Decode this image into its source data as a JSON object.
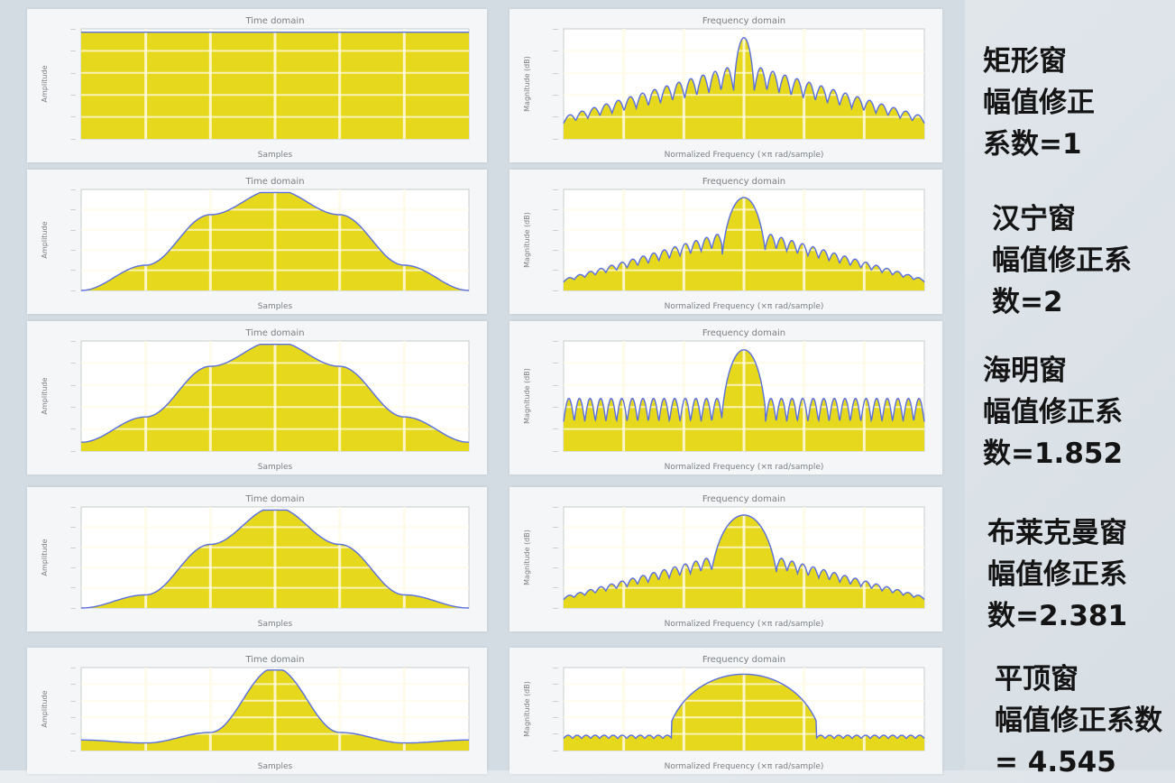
{
  "colors": {
    "fill": "#e6d81c",
    "curve": "#5a6fe0",
    "grid": "#fffbe6",
    "panel": "#f4f6f7"
  },
  "chart_data": [
    {
      "type": "area",
      "row": 0,
      "domain": "time",
      "window": "rectangular",
      "title": "Time domain",
      "xlabel": "Samples",
      "ylabel": "Amplitude",
      "ylim": [
        0,
        1
      ],
      "x": [
        0,
        250,
        500,
        750,
        1000,
        1250,
        1500
      ],
      "y": [
        1,
        1,
        1,
        1,
        1,
        1,
        1
      ]
    },
    {
      "type": "area",
      "row": 0,
      "domain": "frequency",
      "window": "rectangular",
      "title": "Frequency domain",
      "xlabel": "Normalized Frequency (×π rad/sample)",
      "ylabel": "Magnitude (dB)",
      "mainlobe_width": 0.03,
      "mainlobe_height": 1.0,
      "sidelobe_start": 0.72,
      "sidelobe_end": 0.22,
      "sidelobe_count": 14,
      "ripple": 0.15
    },
    {
      "type": "area",
      "row": 1,
      "domain": "time",
      "window": "hanning",
      "title": "Time domain",
      "xlabel": "Samples",
      "ylabel": "Amplitude",
      "ylim": [
        0,
        1
      ],
      "x": [
        0,
        250,
        500,
        750,
        1000,
        1250,
        1500
      ],
      "y": [
        0.0,
        0.25,
        0.75,
        1.0,
        0.75,
        0.25,
        0.0
      ]
    },
    {
      "type": "area",
      "row": 1,
      "domain": "frequency",
      "window": "hanning",
      "title": "Frequency domain",
      "xlabel": "Normalized Frequency (×π rad/sample)",
      "ylabel": "Magnitude (dB)",
      "mainlobe_width": 0.06,
      "mainlobe_height": 1.0,
      "sidelobe_start": 0.62,
      "sidelobe_end": 0.12,
      "sidelobe_count": 15,
      "ripple": 0.12
    },
    {
      "type": "area",
      "row": 2,
      "domain": "time",
      "window": "hamming",
      "title": "Time domain",
      "xlabel": "Samples",
      "ylabel": "Amplitude",
      "ylim": [
        0,
        1
      ],
      "x": [
        0,
        250,
        500,
        750,
        1000,
        1250,
        1500
      ],
      "y": [
        0.08,
        0.31,
        0.77,
        1.0,
        0.77,
        0.31,
        0.08
      ]
    },
    {
      "type": "area",
      "row": 2,
      "domain": "frequency",
      "window": "hamming",
      "title": "Frequency domain",
      "xlabel": "Normalized Frequency (×π rad/sample)",
      "ylabel": "Magnitude (dB)",
      "mainlobe_width": 0.06,
      "mainlobe_height": 1.0,
      "sidelobe_start": 0.52,
      "sidelobe_end": 0.52,
      "sidelobe_count": 15,
      "ripple": 0.22
    },
    {
      "type": "area",
      "row": 3,
      "domain": "time",
      "window": "blackman",
      "title": "Time domain",
      "xlabel": "Samples",
      "ylabel": "Amplitude",
      "ylim": [
        0,
        1
      ],
      "x": [
        0,
        250,
        500,
        750,
        1000,
        1250,
        1500
      ],
      "y": [
        0.0,
        0.13,
        0.63,
        1.0,
        0.63,
        0.13,
        0.0
      ]
    },
    {
      "type": "area",
      "row": 3,
      "domain": "frequency",
      "window": "blackman",
      "title": "Frequency domain",
      "xlabel": "Normalized Frequency (×π rad/sample)",
      "ylabel": "Magnitude (dB)",
      "mainlobe_width": 0.09,
      "mainlobe_height": 1.0,
      "sidelobe_start": 0.55,
      "sidelobe_end": 0.12,
      "sidelobe_count": 14,
      "ripple": 0.12
    },
    {
      "type": "area",
      "row": 4,
      "domain": "time",
      "window": "flattop",
      "title": "Time domain",
      "xlabel": "Samples",
      "ylabel": "Amplitude",
      "ylim": [
        -0.1,
        1
      ],
      "x": [
        0,
        250,
        500,
        750,
        1000,
        1250,
        1500
      ],
      "y": [
        0.04,
        0.0,
        0.14,
        1.0,
        0.14,
        0.0,
        0.04
      ]
    },
    {
      "type": "area",
      "row": 4,
      "domain": "frequency",
      "window": "flattop",
      "title": "Frequency domain",
      "xlabel": "Normalized Frequency (×π rad/sample)",
      "ylabel": "Magnitude (dB)",
      "mainlobe_width": 0.2,
      "mainlobe_height": 1.0,
      "sidelobe_start": 0.2,
      "sidelobe_end": 0.2,
      "sidelobe_count": 12,
      "ripple": 0.1
    }
  ],
  "captions": [
    {
      "lines": [
        "矩形窗",
        "幅值修正",
        "系数=1"
      ]
    },
    {
      "lines": [
        "汉宁窗",
        "幅值修正系",
        "数=2"
      ]
    },
    {
      "lines": [
        "海明窗",
        "幅值修正系",
        "数=1.852"
      ]
    },
    {
      "lines": [
        "布莱克曼窗",
        "幅值修正系",
        "数=2.381"
      ]
    },
    {
      "lines": [
        "平顶窗",
        "幅值修正系数",
        "= 4.545"
      ]
    }
  ]
}
